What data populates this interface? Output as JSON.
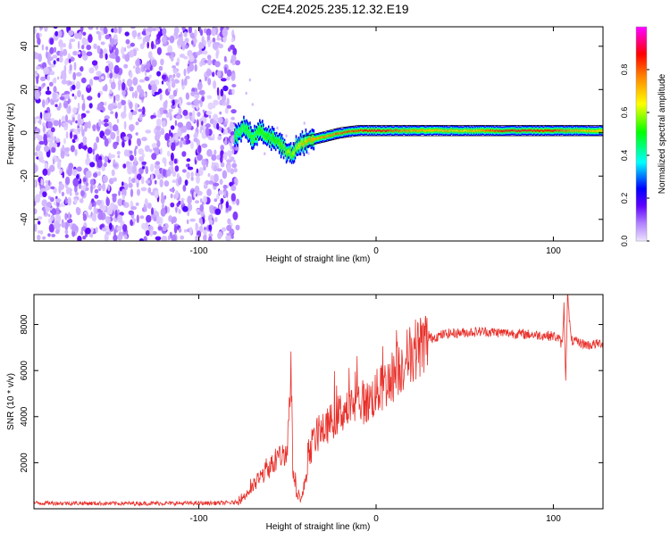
{
  "figure": {
    "title": "C2E4.2025.235.12.32.E19"
  },
  "chart_data": [
    {
      "type": "heatmap",
      "title": "C2E4.2025.235.12.32.E19",
      "xlabel": "Height of straight line (km)",
      "ylabel": "Frequency (Hz)",
      "xlim": [
        -193,
        128
      ],
      "ylim": [
        -50,
        49
      ],
      "x_ticks": [
        -100,
        0,
        100
      ],
      "x_tick_labels": [
        "-100",
        "0",
        "100"
      ],
      "y_ticks": [
        -40,
        -20,
        0,
        20,
        40
      ],
      "y_tick_labels": [
        "-40",
        "-20",
        "0",
        "20",
        "40"
      ],
      "colorbar": {
        "label": "Normalized spectral amplitude",
        "range": [
          0,
          1
        ],
        "ticks": [
          0.0,
          0.2,
          0.4,
          0.6,
          0.8
        ],
        "tick_labels": [
          "0.0",
          "0.2",
          "0.4",
          "0.6",
          "0.8"
        ],
        "colors": [
          "#ffffff",
          "#b080ff",
          "#6000ff",
          "#0000ff",
          "#00ffff",
          "#00ff00",
          "#ffff00",
          "#ff8000",
          "#ff0000",
          "#ff00ff"
        ]
      },
      "noise_region": {
        "x_range": [
          -193,
          -78
        ],
        "freq_range": [
          -50,
          49
        ],
        "amplitude": "0.05-0.2"
      },
      "ridge": {
        "x": [
          -80,
          -75,
          -70,
          -65,
          -60,
          -55,
          -50,
          -47,
          -45,
          -40,
          -35,
          -30,
          -20,
          -10,
          0,
          20,
          50,
          80,
          100,
          110,
          128
        ],
        "freq": [
          -1,
          2,
          -2,
          1,
          -2,
          -5,
          -9,
          -10,
          -6,
          -4,
          -3,
          -2,
          0,
          1,
          1,
          1,
          1,
          1,
          1,
          1,
          1
        ],
        "amplitude": [
          0.4,
          0.45,
          0.45,
          0.5,
          0.5,
          0.55,
          0.6,
          0.6,
          0.65,
          0.7,
          0.75,
          0.75,
          0.8,
          0.85,
          0.9,
          0.75,
          0.7,
          0.9,
          0.85,
          0.75,
          0.7
        ]
      }
    },
    {
      "type": "line",
      "xlabel": "Height of straight line (km)",
      "ylabel": "SNR (10 * v/v)",
      "xlim": [
        -193,
        128
      ],
      "ylim": [
        0,
        9300
      ],
      "x_ticks": [
        -100,
        0,
        100
      ],
      "x_tick_labels": [
        "-100",
        "0",
        "100"
      ],
      "y_ticks": [
        2000,
        4000,
        6000,
        8000
      ],
      "y_tick_labels": [
        "2000",
        "4000",
        "6000",
        "8000"
      ],
      "series": [
        {
          "name": "SNR",
          "color": "#e8302a",
          "x": [
            -193,
            -150,
            -100,
            -80,
            -75,
            -70,
            -65,
            -60,
            -55,
            -52,
            -50,
            -48,
            -47,
            -45,
            -42,
            -40,
            -38,
            -35,
            -30,
            -25,
            -20,
            -15,
            -10,
            -5,
            0,
            5,
            10,
            15,
            20,
            25,
            30,
            35,
            40,
            50,
            60,
            70,
            80,
            90,
            100,
            103,
            105,
            106,
            107,
            108,
            110,
            115,
            120,
            128
          ],
          "y": [
            250,
            230,
            240,
            260,
            500,
            900,
            1400,
            1800,
            2200,
            2400,
            2600,
            6400,
            1800,
            800,
            400,
            1200,
            2200,
            3000,
            3400,
            3800,
            4200,
            4300,
            4700,
            4600,
            5000,
            5400,
            5800,
            6300,
            6800,
            7100,
            7400,
            7500,
            7600,
            7650,
            7700,
            7650,
            7600,
            7550,
            7500,
            7400,
            7100,
            8800,
            5600,
            9300,
            7300,
            7200,
            7100,
            7200
          ]
        }
      ]
    }
  ]
}
